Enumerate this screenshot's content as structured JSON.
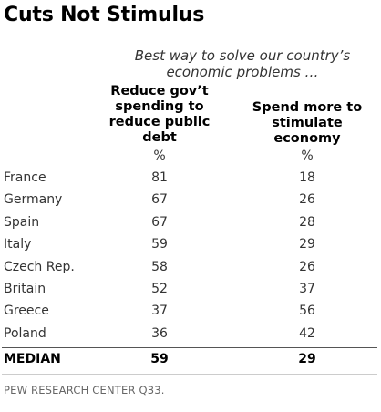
{
  "chart_data": {
    "type": "table",
    "title": "Cuts Not Stimulus",
    "subtitle": "Best way to solve our country’s economic problems …",
    "columns": [
      {
        "header": "Reduce gov’t spending to reduce public debt",
        "unit": "%"
      },
      {
        "header": "Spend more to stimulate economy",
        "unit": "%"
      }
    ],
    "rows": [
      {
        "label": "France",
        "values": [
          81,
          18
        ]
      },
      {
        "label": "Germany",
        "values": [
          67,
          26
        ]
      },
      {
        "label": "Spain",
        "values": [
          67,
          28
        ]
      },
      {
        "label": "Italy",
        "values": [
          59,
          29
        ]
      },
      {
        "label": "Czech Rep.",
        "values": [
          58,
          26
        ]
      },
      {
        "label": "Britain",
        "values": [
          52,
          37
        ]
      },
      {
        "label": "Greece",
        "values": [
          37,
          56
        ]
      },
      {
        "label": "Poland",
        "values": [
          36,
          42
        ]
      }
    ],
    "summary_row": {
      "label": "MEDIAN",
      "values": [
        59,
        29
      ]
    },
    "source": "PEW RESEARCH CENTER Q33."
  }
}
